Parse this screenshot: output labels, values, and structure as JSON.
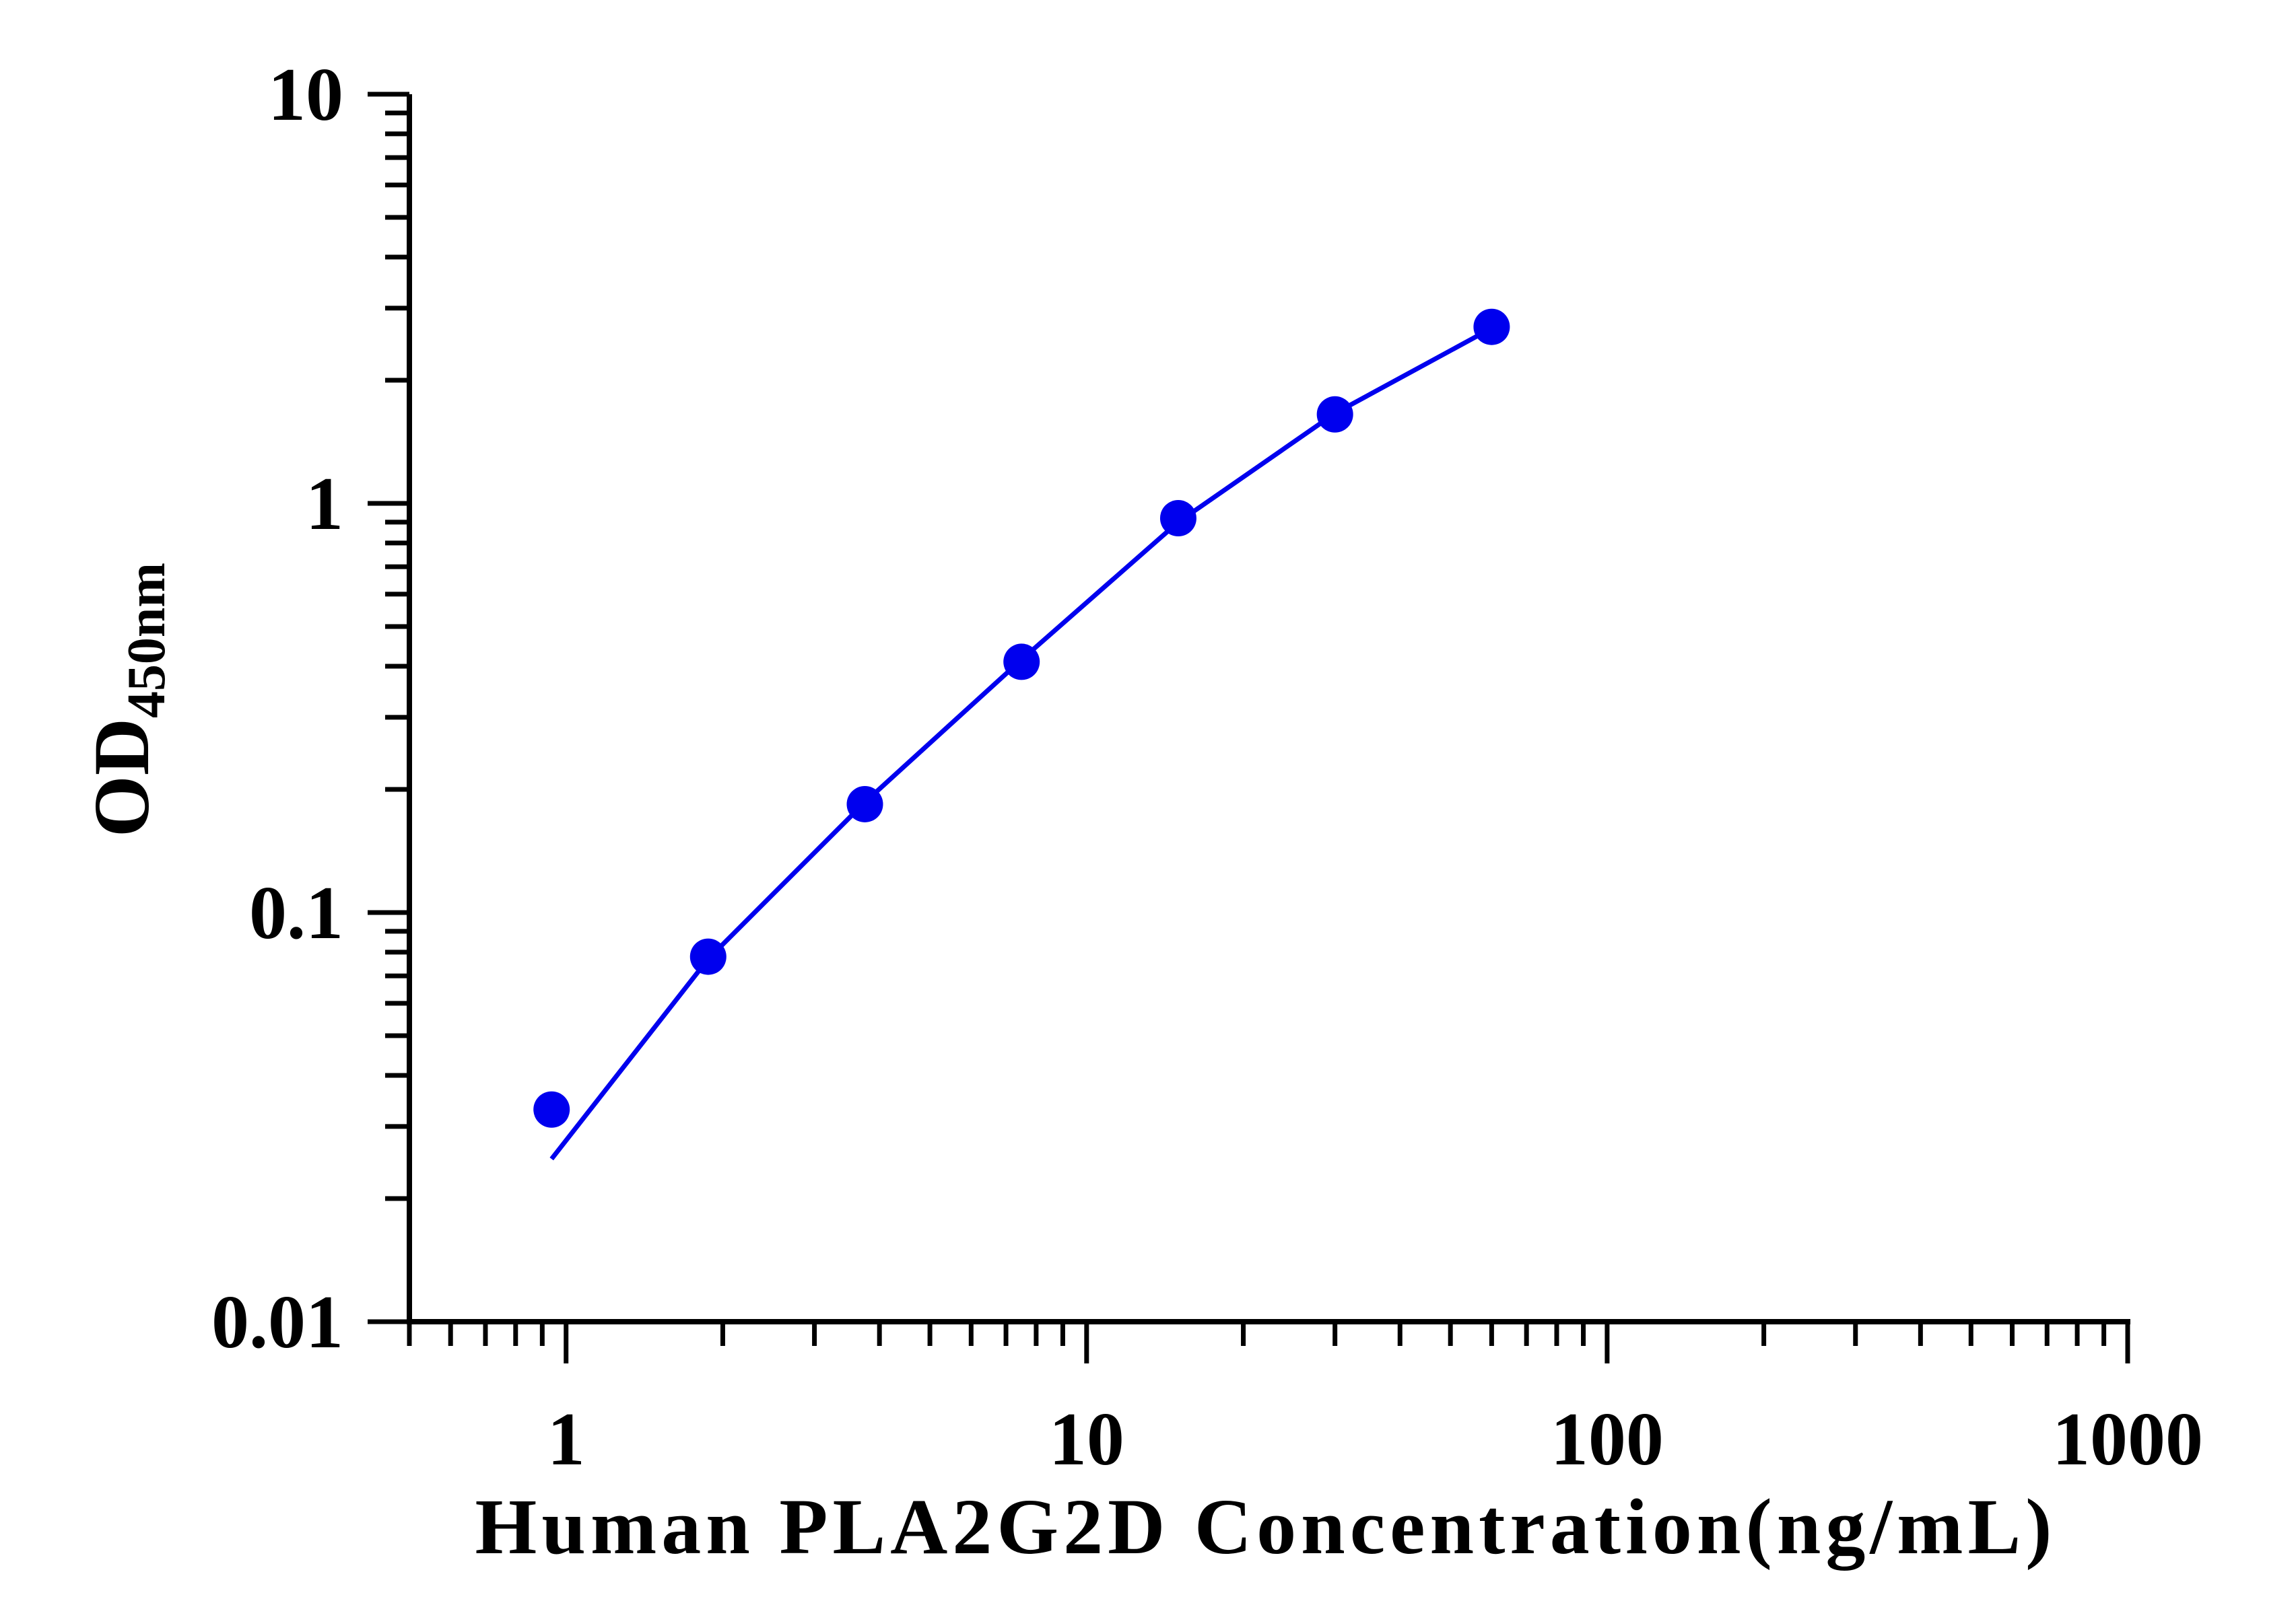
{
  "chart_data": {
    "type": "scatter",
    "title": "",
    "xlabel": "Human PLA2G2D Concentration(ng/mL)",
    "ylabel": {
      "main": "OD",
      "subscript": "450nm"
    },
    "x_scale": "log",
    "y_scale": "log",
    "xlim": [
      0.5,
      1000
    ],
    "ylim": [
      0.01,
      10
    ],
    "x_ticks": [
      1,
      10,
      100,
      1000
    ],
    "x_tick_labels": [
      "1",
      "10",
      "100",
      "1000"
    ],
    "y_ticks": [
      0.01,
      0.1,
      1,
      10
    ],
    "y_tick_labels": [
      "0.01",
      "0.1",
      "1",
      "10"
    ],
    "grid": false,
    "legend": "none",
    "series": [
      {
        "points": [
          {
            "x": 0.938,
            "y": 0.033
          },
          {
            "x": 1.875,
            "y": 0.078
          },
          {
            "x": 3.75,
            "y": 0.184
          },
          {
            "x": 7.5,
            "y": 0.41
          },
          {
            "x": 15,
            "y": 0.92
          },
          {
            "x": 30,
            "y": 1.65
          },
          {
            "x": 60,
            "y": 2.7
          }
        ],
        "fit_curve": [
          {
            "x": 0.938,
            "y": 0.025
          },
          {
            "x": 1.875,
            "y": 0.077
          },
          {
            "x": 3.75,
            "y": 0.186
          },
          {
            "x": 7.5,
            "y": 0.415
          },
          {
            "x": 15,
            "y": 0.9
          },
          {
            "x": 30,
            "y": 1.66
          },
          {
            "x": 60,
            "y": 2.68
          }
        ]
      }
    ],
    "colors": {
      "series": "#0000ee",
      "axis": "#000000"
    }
  }
}
